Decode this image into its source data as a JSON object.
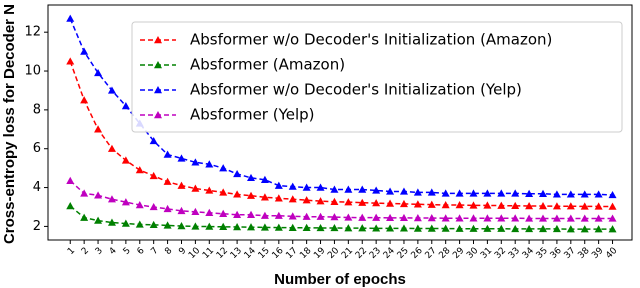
{
  "chart_data": {
    "type": "line",
    "xlabel": "Number of epochs",
    "ylabel": "Cross-entropy loss for Decoder N",
    "x": [
      1,
      2,
      3,
      4,
      5,
      6,
      7,
      8,
      9,
      10,
      11,
      12,
      13,
      14,
      15,
      16,
      17,
      18,
      19,
      20,
      21,
      22,
      23,
      24,
      25,
      26,
      27,
      28,
      29,
      30,
      31,
      32,
      33,
      34,
      35,
      36,
      37,
      38,
      39,
      40
    ],
    "xlim": [
      -0.6,
      41.4
    ],
    "xticks": [
      1,
      2,
      3,
      4,
      5,
      6,
      7,
      8,
      9,
      10,
      11,
      12,
      13,
      14,
      15,
      16,
      17,
      18,
      19,
      20,
      21,
      22,
      23,
      24,
      25,
      26,
      27,
      28,
      29,
      30,
      31,
      32,
      33,
      34,
      35,
      36,
      37,
      38,
      39,
      40
    ],
    "ylim": [
      1.3,
      13.4
    ],
    "yticks": [
      2,
      4,
      6,
      8,
      10,
      12
    ],
    "grid": false,
    "legend": "upper right",
    "series": [
      {
        "name": "Absformer w/o Decoder's Initialization (Amazon)",
        "color": "#ff0000",
        "values": [
          10.5,
          8.5,
          7.0,
          6.0,
          5.4,
          4.9,
          4.6,
          4.3,
          4.1,
          3.95,
          3.85,
          3.75,
          3.65,
          3.58,
          3.5,
          3.45,
          3.4,
          3.35,
          3.3,
          3.27,
          3.25,
          3.22,
          3.2,
          3.18,
          3.16,
          3.14,
          3.12,
          3.1,
          3.1,
          3.08,
          3.08,
          3.07,
          3.06,
          3.05,
          3.05,
          3.04,
          3.04,
          3.03,
          3.03,
          3.02
        ]
      },
      {
        "name": "Absformer (Amazon)",
        "color": "#008000",
        "values": [
          3.05,
          2.45,
          2.3,
          2.2,
          2.15,
          2.1,
          2.08,
          2.05,
          2.02,
          2.0,
          1.99,
          1.98,
          1.97,
          1.96,
          1.95,
          1.94,
          1.93,
          1.93,
          1.92,
          1.92,
          1.91,
          1.91,
          1.9,
          1.9,
          1.9,
          1.89,
          1.89,
          1.89,
          1.88,
          1.88,
          1.88,
          1.88,
          1.87,
          1.87,
          1.87,
          1.87,
          1.86,
          1.86,
          1.86,
          1.86
        ]
      },
      {
        "name": "Absformer w/o Decoder's Initialization (Yelp)",
        "color": "#0000ff",
        "values": [
          12.7,
          11.0,
          9.9,
          9.0,
          8.2,
          7.3,
          6.4,
          5.7,
          5.5,
          5.3,
          5.2,
          5.0,
          4.7,
          4.5,
          4.4,
          4.1,
          4.05,
          4.0,
          4.0,
          3.9,
          3.9,
          3.9,
          3.85,
          3.8,
          3.8,
          3.75,
          3.75,
          3.7,
          3.7,
          3.7,
          3.7,
          3.7,
          3.7,
          3.68,
          3.68,
          3.65,
          3.65,
          3.65,
          3.65,
          3.62
        ]
      },
      {
        "name": "Absformer (Yelp)",
        "color": "#bf00bf",
        "values": [
          4.35,
          3.7,
          3.6,
          3.4,
          3.25,
          3.1,
          3.0,
          2.9,
          2.8,
          2.75,
          2.7,
          2.65,
          2.6,
          2.6,
          2.55,
          2.55,
          2.52,
          2.5,
          2.5,
          2.48,
          2.46,
          2.45,
          2.45,
          2.44,
          2.44,
          2.43,
          2.43,
          2.42,
          2.42,
          2.42,
          2.42,
          2.42,
          2.42,
          2.41,
          2.41,
          2.41,
          2.41,
          2.41,
          2.41,
          2.41
        ]
      }
    ]
  }
}
